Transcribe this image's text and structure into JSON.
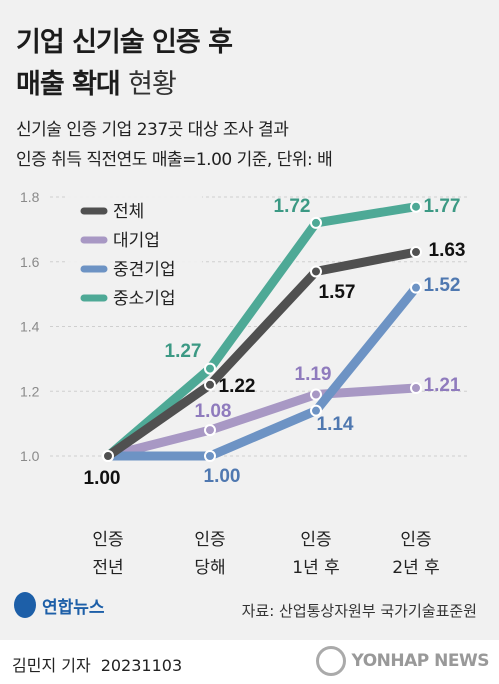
{
  "title_line1": "기업 신기술 인증 후",
  "title_line2_bold": "매출 확대",
  "title_line2_light": "현황",
  "subtitle_line1": "신기술 인증 기업 237곳 대상 조사 결과",
  "subtitle_line2": "인증 취득 직전연도 매출=1.00 기준, 단위: 배",
  "source": "자료: 산업통상자원부 국가기술표준원",
  "logo_text": "연합뉴스",
  "author": "김민지 기자",
  "date": "20231103",
  "brand": "YONHAP NEWS",
  "chart_data": {
    "type": "line",
    "categories": [
      [
        "인증",
        "전년"
      ],
      [
        "인증",
        "당해"
      ],
      [
        "인증",
        "1년 후"
      ],
      [
        "인증",
        "2년 후"
      ]
    ],
    "ylim": [
      1.0,
      1.8
    ],
    "yticks": [
      "1.0",
      "1.2",
      "1.4",
      "1.6",
      "1.8"
    ],
    "grid": true,
    "legend_position": "top-left",
    "series": [
      {
        "name": "전체",
        "color": "#505050",
        "values": [
          1.0,
          1.22,
          1.57,
          1.63
        ],
        "labels": [
          "1.00",
          "1.22",
          "1.57",
          "1.63"
        ]
      },
      {
        "name": "대기업",
        "color": "#a898c4",
        "values": [
          1.0,
          1.08,
          1.19,
          1.21
        ],
        "labels": [
          "",
          "1.08",
          "1.19",
          "1.21"
        ]
      },
      {
        "name": "중견기업",
        "color": "#6d93c4",
        "values": [
          1.0,
          1.0,
          1.14,
          1.52
        ],
        "labels": [
          "",
          "1.00",
          "1.14",
          "1.52"
        ]
      },
      {
        "name": "중소기업",
        "color": "#4ea996",
        "values": [
          1.0,
          1.27,
          1.72,
          1.77
        ],
        "labels": [
          "",
          "1.27",
          "1.72",
          "1.77"
        ]
      }
    ]
  }
}
